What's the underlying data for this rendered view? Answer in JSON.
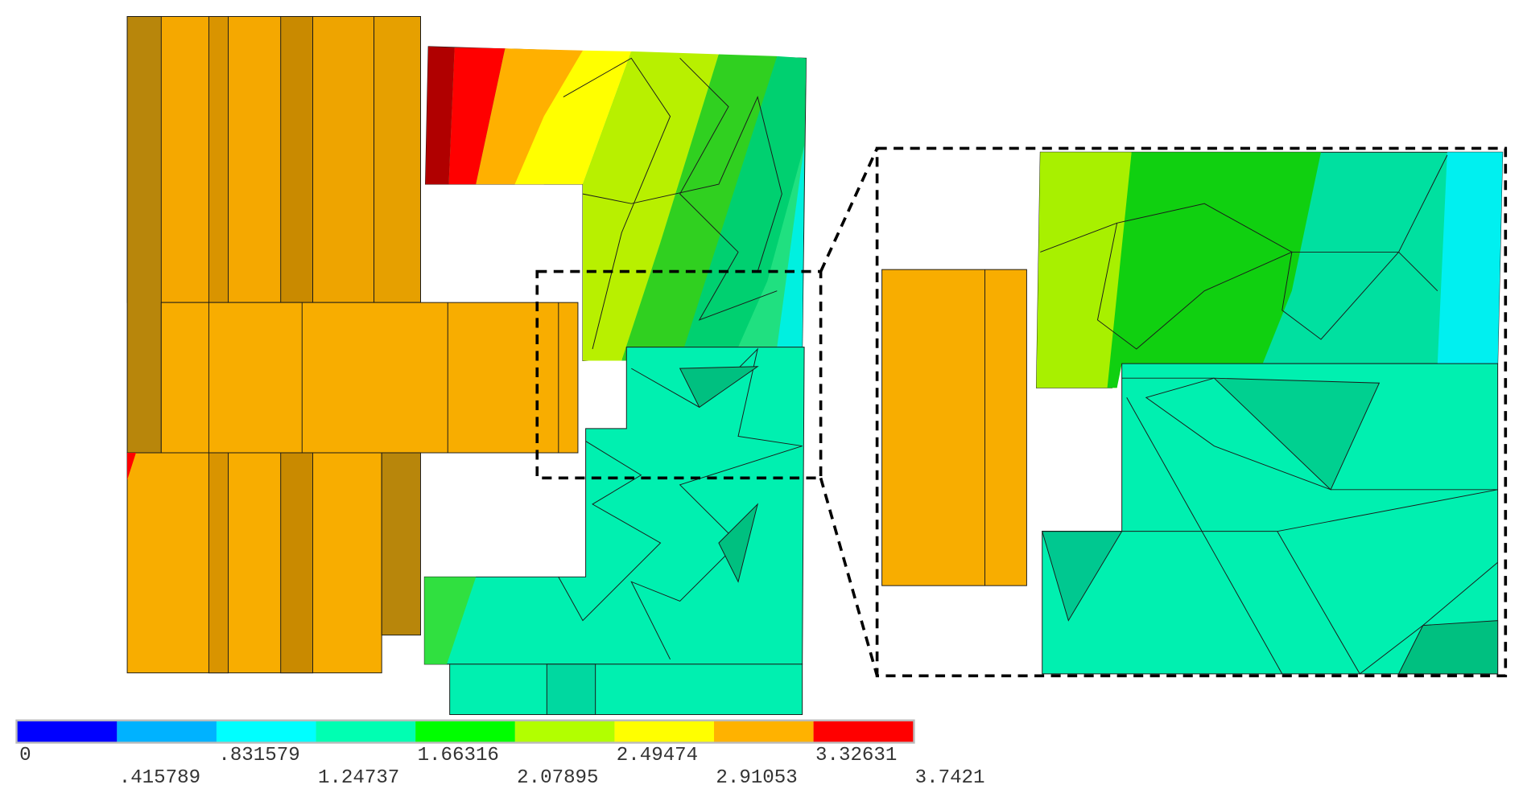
{
  "legend": {
    "colors": [
      "#0000ff",
      "#00b2ff",
      "#00ffff",
      "#00ffb2",
      "#00ff00",
      "#b2ff00",
      "#ffff00",
      "#ffb200",
      "#ff0000"
    ],
    "labels": [
      "0",
      ".415789",
      ".831579",
      "1.24737",
      "1.66316",
      "2.07895",
      "2.49474",
      "2.91053",
      "3.32631",
      "3.7421"
    ]
  }
}
